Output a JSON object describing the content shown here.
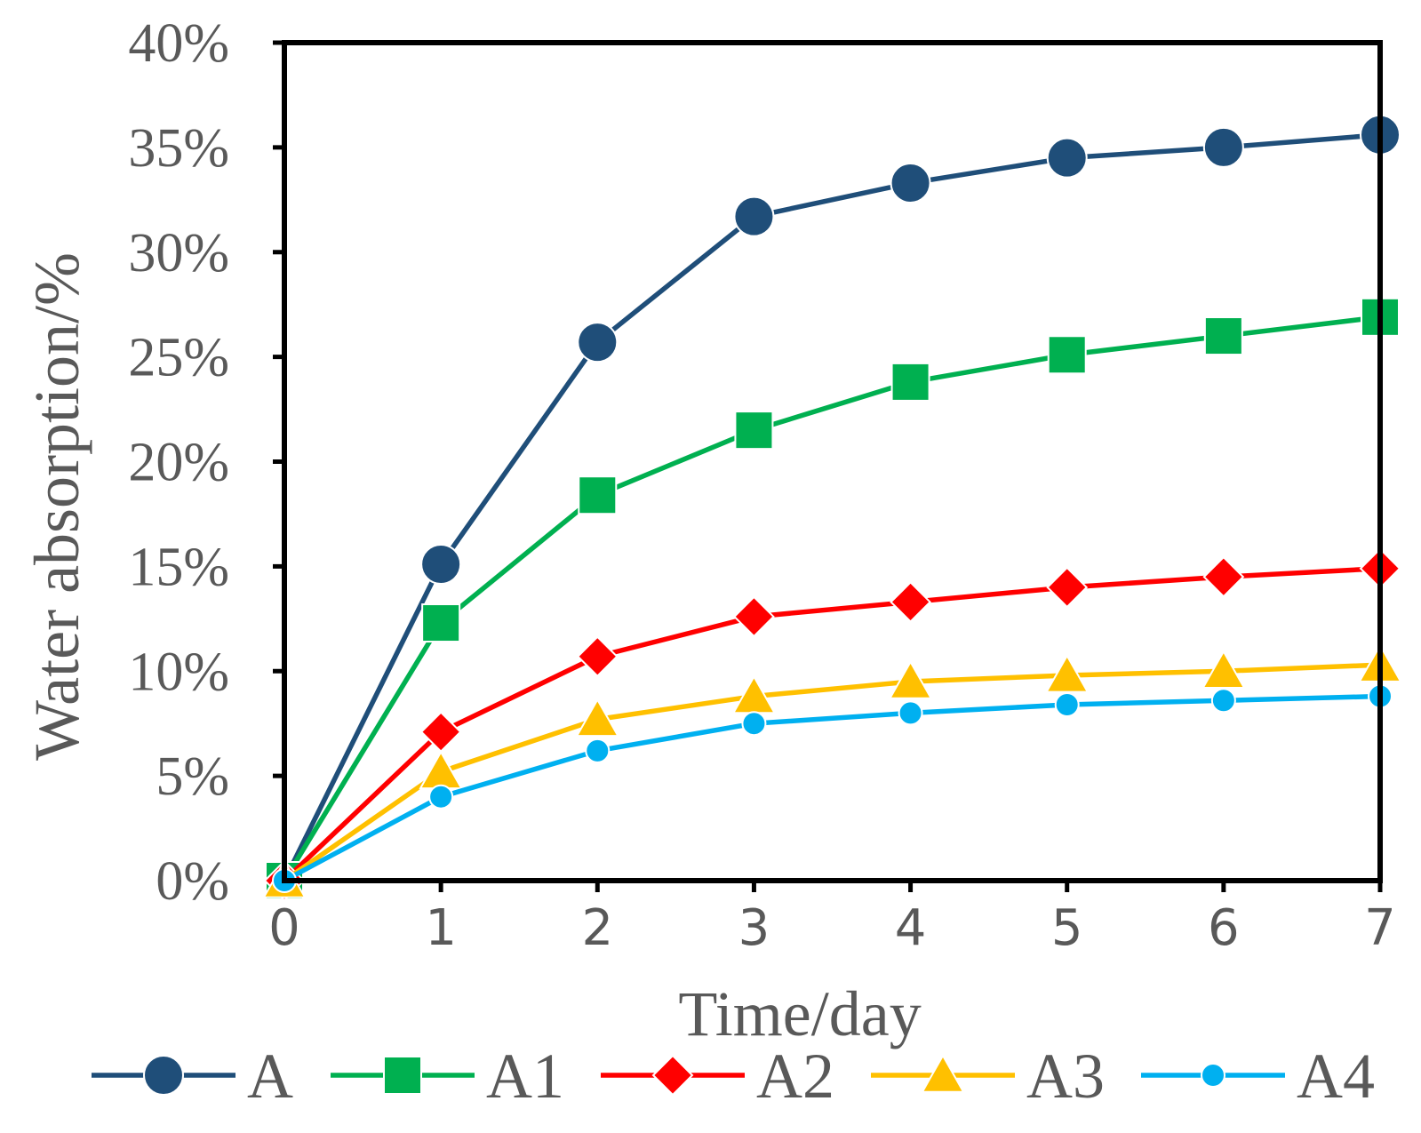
{
  "chart_data": {
    "type": "line",
    "title": "",
    "xlabel": "Time/day",
    "ylabel": "Water absorption/%",
    "x": [
      0,
      1,
      2,
      3,
      4,
      5,
      6,
      7
    ],
    "x_tick_labels": [
      "0",
      "1",
      "2",
      "3",
      "4",
      "5",
      "6",
      "7"
    ],
    "xlim": [
      0,
      7
    ],
    "ylim": [
      0,
      0.4
    ],
    "y_ticks": [
      0,
      0.05,
      0.1,
      0.15,
      0.2,
      0.25,
      0.3,
      0.35,
      0.4
    ],
    "y_tick_labels": [
      "0%",
      "5%",
      "10%",
      "15%",
      "20%",
      "25%",
      "30%",
      "35%",
      "40%"
    ],
    "grid": false,
    "legend_position": "bottom",
    "series": [
      {
        "name": "A",
        "color": "#1F4E79",
        "marker": "circle",
        "values": [
          0.0,
          0.151,
          0.257,
          0.317,
          0.333,
          0.345,
          0.35,
          0.356
        ]
      },
      {
        "name": "A1",
        "color": "#00B050",
        "marker": "square",
        "values": [
          0.0,
          0.123,
          0.184,
          0.215,
          0.238,
          0.251,
          0.26,
          0.269
        ]
      },
      {
        "name": "A2",
        "color": "#FF0000",
        "marker": "diamond",
        "values": [
          0.0,
          0.071,
          0.107,
          0.126,
          0.133,
          0.14,
          0.145,
          0.149
        ]
      },
      {
        "name": "A3",
        "color": "#FFC000",
        "marker": "triangle",
        "values": [
          0.0,
          0.052,
          0.077,
          0.088,
          0.095,
          0.098,
          0.1,
          0.103
        ]
      },
      {
        "name": "A4",
        "color": "#00B0F0",
        "marker": "small-circle",
        "values": [
          0.0,
          0.04,
          0.062,
          0.075,
          0.08,
          0.084,
          0.086,
          0.088
        ]
      }
    ]
  }
}
